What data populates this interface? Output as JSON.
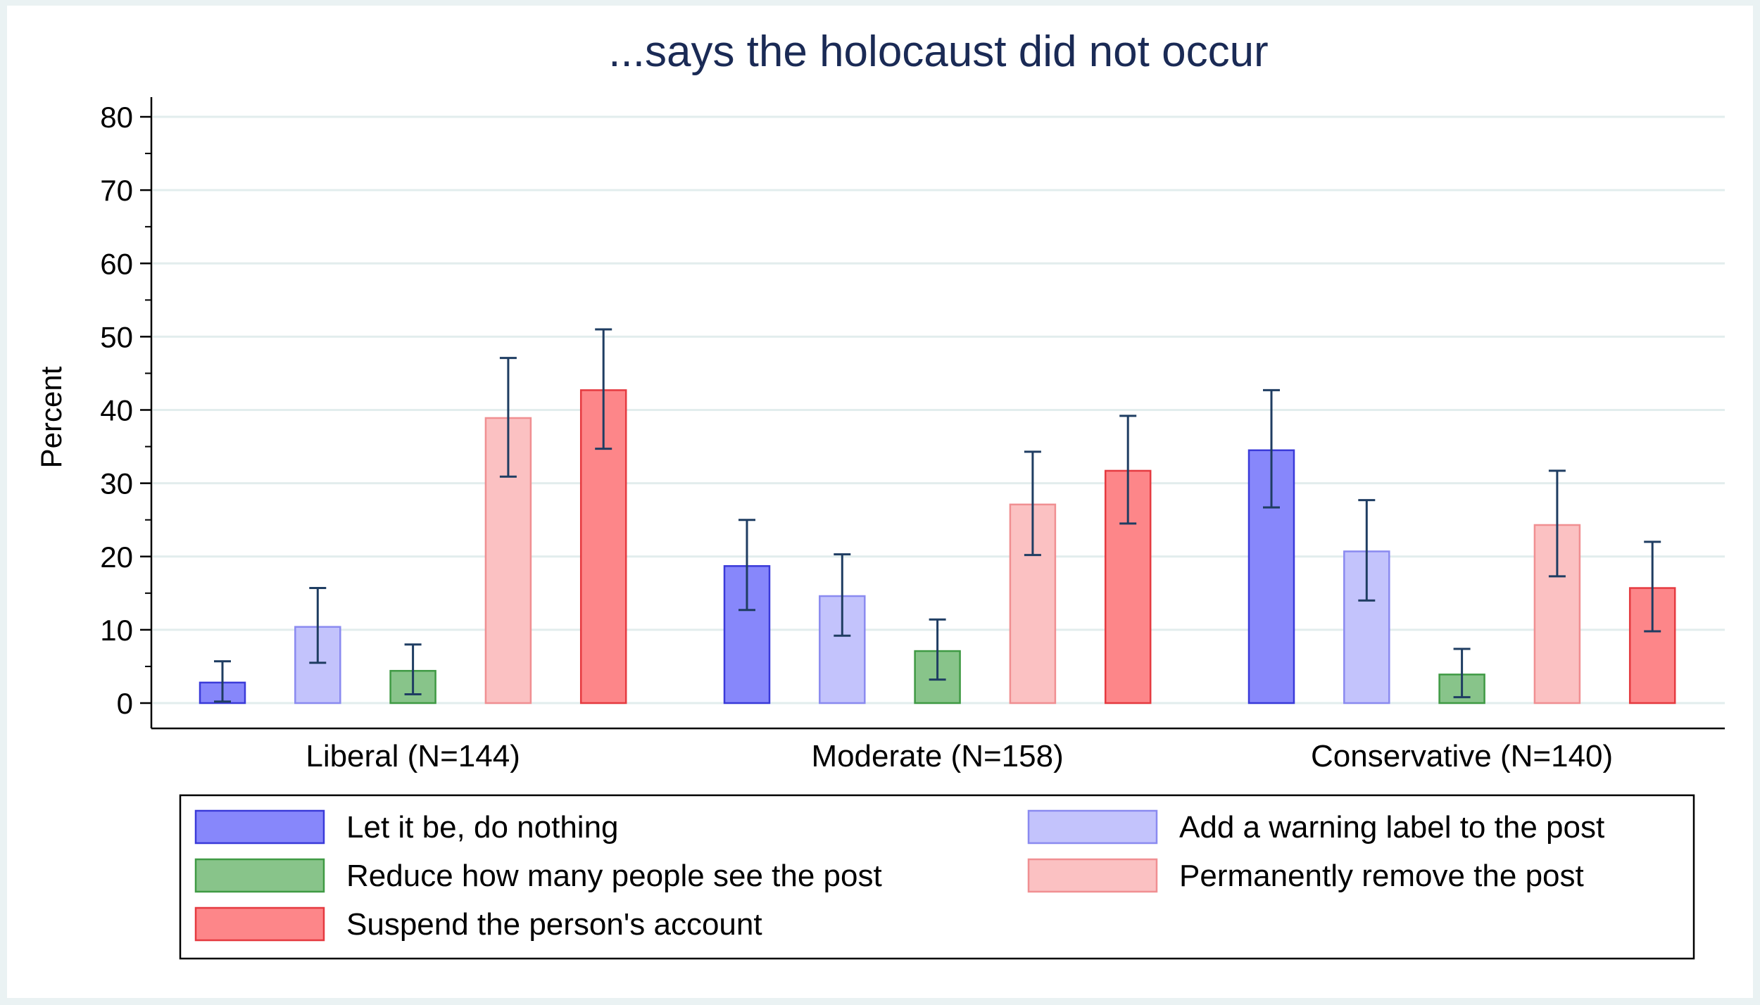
{
  "chart_data": {
    "type": "bar",
    "title": "...says the holocaust did not occur",
    "ylabel": "Percent",
    "xlabel": "",
    "ylim": [
      0,
      80
    ],
    "yticks": [
      "0",
      "10",
      "20",
      "30",
      "40",
      "50",
      "60",
      "70",
      "80"
    ],
    "categories": [
      "Liberal (N=144)",
      "Moderate (N=158)",
      "Conservative (N=140)"
    ],
    "grid": true,
    "legend_position": "bottom",
    "series": [
      {
        "name": "Let it be, do nothing",
        "fill": "#8787fb",
        "stroke": "#3a3ad9",
        "values": [
          2.8,
          18.7,
          34.5
        ],
        "ci_low": [
          0.2,
          12.7,
          26.7
        ],
        "ci_high": [
          5.7,
          25.0,
          42.7
        ]
      },
      {
        "name": "Add a warning label to the post",
        "fill": "#c3c3fc",
        "stroke": "#8a8af0",
        "values": [
          10.4,
          14.6,
          20.7
        ],
        "ci_low": [
          5.5,
          9.2,
          14.0
        ],
        "ci_high": [
          15.7,
          20.3,
          27.7
        ]
      },
      {
        "name": "Reduce how many people see the post",
        "fill": "#88c48a",
        "stroke": "#3f9a44",
        "values": [
          4.4,
          7.1,
          3.9
        ],
        "ci_low": [
          1.2,
          3.2,
          0.8
        ],
        "ci_high": [
          8.0,
          11.4,
          7.4
        ]
      },
      {
        "name": "Permanently remove the post",
        "fill": "#fbc1c2",
        "stroke": "#f08f92",
        "values": [
          38.9,
          27.1,
          24.3
        ],
        "ci_low": [
          30.9,
          20.2,
          17.3
        ],
        "ci_high": [
          47.1,
          34.3,
          31.7
        ]
      },
      {
        "name": "Suspend the person's account",
        "fill": "#fd8689",
        "stroke": "#e53a40",
        "values": [
          42.7,
          31.7,
          15.7
        ],
        "ci_low": [
          34.7,
          24.5,
          9.8
        ],
        "ci_high": [
          51.0,
          39.2,
          22.0
        ]
      }
    ],
    "error_bar_color": "#1f3d62",
    "grid_color": "#e2eded"
  }
}
